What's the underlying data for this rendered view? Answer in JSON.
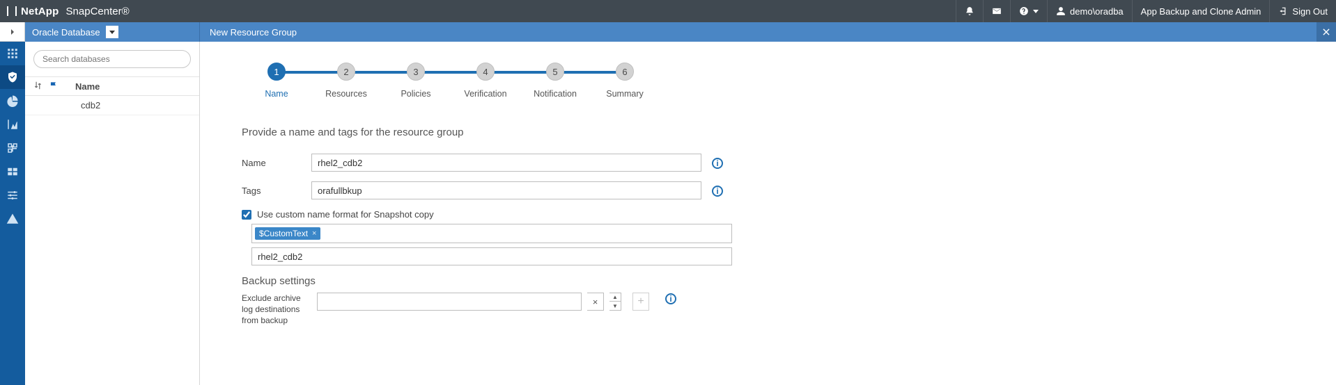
{
  "colors": {
    "topbar_bg": "#404951",
    "accent_blue": "#1f6fb2",
    "header_blue": "#4a86c5",
    "rail_blue": "#145c9e"
  },
  "topbar": {
    "brand": "NetApp",
    "product": "SnapCenter®",
    "user": "demo\\oradba",
    "role": "App Backup and Clone Admin",
    "signout": "Sign Out",
    "help_label": ""
  },
  "rail": {
    "items": [
      "dashboard",
      "resources",
      "monitor",
      "reports",
      "hosts",
      "storage",
      "settings",
      "alerts"
    ],
    "active_index": 1
  },
  "context": {
    "dropdown_label": "Oracle Database",
    "search_placeholder": "Search databases",
    "name_header": "Name",
    "rows": [
      "cdb2"
    ]
  },
  "page": {
    "title": "New Resource Group"
  },
  "wizard": {
    "steps": [
      {
        "n": "1",
        "label": "Name"
      },
      {
        "n": "2",
        "label": "Resources"
      },
      {
        "n": "3",
        "label": "Policies"
      },
      {
        "n": "4",
        "label": "Verification"
      },
      {
        "n": "5",
        "label": "Notification"
      },
      {
        "n": "6",
        "label": "Summary"
      }
    ],
    "active_step": 0
  },
  "form": {
    "title": "Provide a name and tags for the resource group",
    "name_label": "Name",
    "name_value": "rhel2_cdb2",
    "tags_label": "Tags",
    "tags_value": "orafullbkup",
    "custom_checked": true,
    "custom_label": "Use custom name format for Snapshot copy",
    "token": "$CustomText",
    "snapshot_name_value": "rhel2_cdb2",
    "backup_settings_title": "Backup settings",
    "exclude_label": "Exclude archive log destinations from backup",
    "add_label": "+"
  }
}
